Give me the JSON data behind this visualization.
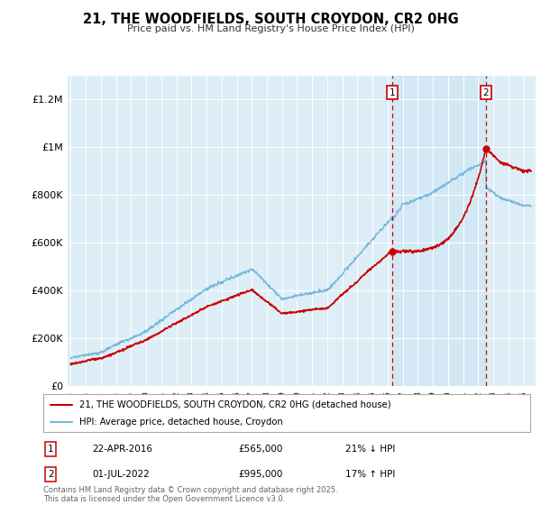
{
  "title": "21, THE WOODFIELDS, SOUTH CROYDON, CR2 0HG",
  "subtitle": "Price paid vs. HM Land Registry's House Price Index (HPI)",
  "ylim": [
    0,
    1300000
  ],
  "xlim_start": 1994.8,
  "xlim_end": 2025.8,
  "hpi_color": "#7ab8d9",
  "price_color": "#cc0000",
  "sale1_date": 2016.29,
  "sale1_price": 565000,
  "sale2_date": 2022.5,
  "sale2_price": 995000,
  "legend_line1": "21, THE WOODFIELDS, SOUTH CROYDON, CR2 0HG (detached house)",
  "legend_line2": "HPI: Average price, detached house, Croydon",
  "annotation1_date": "22-APR-2016",
  "annotation1_price": "£565,000",
  "annotation1_hpi": "21% ↓ HPI",
  "annotation2_date": "01-JUL-2022",
  "annotation2_price": "£995,000",
  "annotation2_hpi": "17% ↑ HPI",
  "footer": "Contains HM Land Registry data © Crown copyright and database right 2025.\nThis data is licensed under the Open Government Licence v3.0.",
  "background_color": "#ddeef7",
  "shaded_color": "#d0e8f5",
  "plot_bg": "#ffffff"
}
